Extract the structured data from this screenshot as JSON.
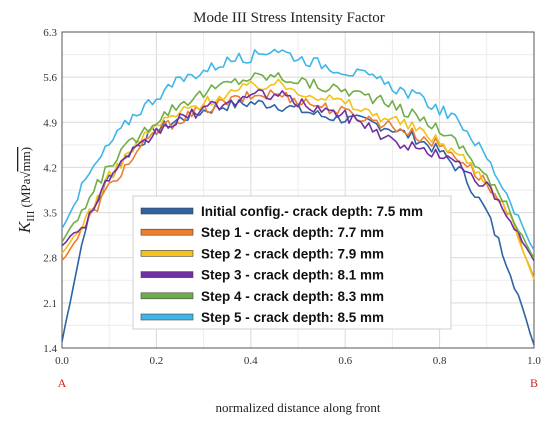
{
  "chart_data": {
    "type": "line",
    "title": "Mode III Stress Intensity Factor",
    "xlabel": "normalized distance along front",
    "ylabel": {
      "symbol": "K",
      "subscript": "III",
      "unit_prefix": "(MPa",
      "unit_suffix": "mm)"
    },
    "xlim": [
      0.0,
      1.0
    ],
    "ylim": [
      1.4,
      6.3
    ],
    "xticks": [
      "0.0",
      "0.2",
      "0.4",
      "0.6",
      "0.8",
      "1.0"
    ],
    "yticks": [
      "1.4",
      "2.1",
      "2.8",
      "3.5",
      "4.2",
      "4.9",
      "5.6",
      "6.3"
    ],
    "end_labels": {
      "start": "A",
      "end": "B"
    },
    "grid": true,
    "legend_position": "center-bottom",
    "x": [
      0.0,
      0.05,
      0.1,
      0.15,
      0.2,
      0.25,
      0.3,
      0.35,
      0.4,
      0.45,
      0.5,
      0.55,
      0.6,
      0.65,
      0.7,
      0.75,
      0.8,
      0.85,
      0.9,
      0.95,
      1.0
    ],
    "series": [
      {
        "name": "Initial config.- crack depth: 7.5 mm",
        "color": "#2e63a6",
        "values": [
          1.5,
          3.3,
          4.05,
          4.5,
          4.78,
          4.95,
          5.08,
          5.16,
          5.2,
          5.18,
          5.1,
          5.0,
          4.95,
          4.9,
          4.8,
          4.65,
          4.45,
          4.1,
          3.5,
          2.6,
          1.45
        ]
      },
      {
        "name": "Step 1 - crack depth: 7.7 mm",
        "color": "#ed7d31",
        "values": [
          2.75,
          3.3,
          3.9,
          4.35,
          4.75,
          4.95,
          5.1,
          5.22,
          5.3,
          5.35,
          5.25,
          5.15,
          5.05,
          4.95,
          4.85,
          4.7,
          4.55,
          4.3,
          3.95,
          3.4,
          2.5
        ]
      },
      {
        "name": "Step 2 - crack depth: 7.9 mm",
        "color": "#f3c21b",
        "values": [
          2.85,
          3.4,
          4.05,
          4.5,
          4.85,
          5.05,
          5.2,
          5.35,
          5.45,
          5.5,
          5.4,
          5.3,
          5.2,
          5.05,
          4.95,
          4.8,
          4.6,
          4.35,
          4.0,
          3.45,
          2.45
        ]
      },
      {
        "name": "Step 3 - crack depth: 8.1 mm",
        "color": "#7030a0",
        "values": [
          3.0,
          3.35,
          4.05,
          4.4,
          4.75,
          4.95,
          5.1,
          5.2,
          5.3,
          5.35,
          5.2,
          5.1,
          5.0,
          4.85,
          4.6,
          4.5,
          4.4,
          4.2,
          3.9,
          3.35,
          2.75
        ]
      },
      {
        "name": "Step 4 - crack depth: 8.3 mm",
        "color": "#70ad47",
        "values": [
          3.05,
          3.6,
          4.25,
          4.6,
          4.95,
          5.2,
          5.35,
          5.5,
          5.6,
          5.62,
          5.55,
          5.45,
          5.4,
          5.3,
          5.15,
          5.0,
          4.8,
          4.5,
          4.05,
          3.5,
          2.8
        ]
      },
      {
        "name": "Step 5 - crack depth: 8.5 mm",
        "color": "#3fb6e8",
        "values": [
          3.25,
          4.0,
          4.55,
          5.0,
          5.3,
          5.55,
          5.7,
          5.85,
          5.92,
          6.05,
          5.9,
          5.8,
          5.7,
          5.6,
          5.45,
          5.3,
          5.1,
          4.85,
          4.35,
          3.7,
          2.9
        ]
      }
    ]
  }
}
